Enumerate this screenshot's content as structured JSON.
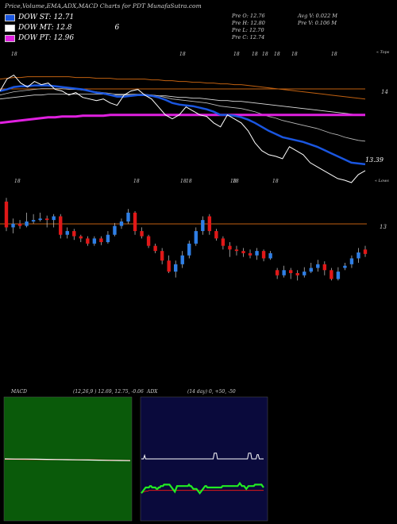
{
  "header": {
    "title": "Price,Volume,EMA,ADX,MACD Charts for PDT MunafaSutra.com",
    "dow_st_label": "DOW ST: 12.71",
    "dow_mt_label": "DOW MT: 12.8",
    "dow_mt_extra": "6",
    "dow_pt_label": "DOW PT: 12.96"
  },
  "ohlc": {
    "open": "Pre  O: 12.76",
    "high": "Pre  H: 12.80",
    "low": "Pre  L: 12.70",
    "close": "Pre  C: 12.74",
    "avg_vol": "Avg V: 0.022  M",
    "pre_vol": "Pre  V: 0.106  M"
  },
  "colors": {
    "up": "#2f7fe6",
    "down": "#e01818",
    "ema_fast": "#1a56e0",
    "ema_purple": "#e020e0",
    "macd_bg": "#0a5a0a",
    "adx_bg": "#0a0a3c",
    "orange_line": "#c06010",
    "green_line": "#22ee22"
  },
  "chart_data": [
    {
      "type": "line",
      "name": "ema_panel",
      "top_labels": [
        "18",
        "18",
        "18",
        "18",
        "18",
        "18",
        "18",
        "18"
      ],
      "top_right_label": "« Tops",
      "y_level_label": "14",
      "last_value_label": "13.39",
      "price": [
        13.6,
        13.75,
        13.8,
        13.7,
        13.65,
        13.72,
        13.68,
        13.7,
        13.62,
        13.6,
        13.55,
        13.58,
        13.52,
        13.5,
        13.48,
        13.5,
        13.45,
        13.42,
        13.55,
        13.6,
        13.62,
        13.55,
        13.5,
        13.4,
        13.3,
        13.25,
        13.3,
        13.4,
        13.35,
        13.3,
        13.28,
        13.2,
        13.15,
        13.3,
        13.25,
        13.2,
        13.1,
        12.95,
        12.85,
        12.8,
        12.78,
        12.75,
        12.9,
        12.85,
        12.8,
        12.7,
        12.65,
        12.6,
        12.55,
        12.5,
        12.48,
        12.45,
        12.55,
        12.6
      ],
      "ema_fast": [
        13.6,
        13.62,
        13.65,
        13.66,
        13.66,
        13.67,
        13.67,
        13.67,
        13.66,
        13.65,
        13.64,
        13.63,
        13.62,
        13.6,
        13.58,
        13.57,
        13.55,
        13.53,
        13.53,
        13.54,
        13.55,
        13.55,
        13.54,
        13.52,
        13.49,
        13.45,
        13.43,
        13.42,
        13.41,
        13.39,
        13.37,
        13.34,
        13.3,
        13.3,
        13.29,
        13.27,
        13.24,
        13.2,
        13.15,
        13.1,
        13.06,
        13.02,
        13.0,
        12.98,
        12.96,
        12.93,
        12.9,
        12.86,
        12.82,
        12.78,
        12.74,
        12.7,
        12.69,
        12.68
      ],
      "ema_mid": [
        13.55,
        13.57,
        13.59,
        13.6,
        13.61,
        13.62,
        13.63,
        13.63,
        13.63,
        13.63,
        13.62,
        13.62,
        13.61,
        13.6,
        13.59,
        13.58,
        13.57,
        13.56,
        13.56,
        13.56,
        13.56,
        13.56,
        13.55,
        13.54,
        13.52,
        13.5,
        13.49,
        13.48,
        13.47,
        13.46,
        13.45,
        13.43,
        13.41,
        13.4,
        13.39,
        13.38,
        13.36,
        13.34,
        13.31,
        13.28,
        13.26,
        13.23,
        13.21,
        13.19,
        13.17,
        13.15,
        13.13,
        13.1,
        13.07,
        13.05,
        13.02,
        13.0,
        12.98,
        12.97
      ],
      "ema_slow": [
        13.5,
        13.51,
        13.52,
        13.53,
        13.54,
        13.55,
        13.55,
        13.56,
        13.56,
        13.56,
        13.56,
        13.56,
        13.56,
        13.56,
        13.56,
        13.56,
        13.55,
        13.55,
        13.55,
        13.55,
        13.55,
        13.55,
        13.55,
        13.54,
        13.54,
        13.53,
        13.52,
        13.52,
        13.51,
        13.51,
        13.5,
        13.49,
        13.48,
        13.48,
        13.47,
        13.47,
        13.46,
        13.45,
        13.44,
        13.43,
        13.42,
        13.41,
        13.4,
        13.39,
        13.38,
        13.37,
        13.36,
        13.35,
        13.34,
        13.33,
        13.32,
        13.31,
        13.3,
        13.3
      ],
      "ema_orange": [
        13.75,
        13.76,
        13.77,
        13.77,
        13.78,
        13.78,
        13.78,
        13.78,
        13.78,
        13.78,
        13.78,
        13.77,
        13.77,
        13.77,
        13.76,
        13.76,
        13.76,
        13.75,
        13.75,
        13.75,
        13.75,
        13.75,
        13.74,
        13.74,
        13.73,
        13.73,
        13.72,
        13.72,
        13.71,
        13.71,
        13.7,
        13.7,
        13.69,
        13.69,
        13.68,
        13.68,
        13.67,
        13.66,
        13.65,
        13.64,
        13.63,
        13.62,
        13.61,
        13.6,
        13.59,
        13.58,
        13.57,
        13.56,
        13.55,
        13.54,
        13.53,
        13.52,
        13.51,
        13.5
      ],
      "ema_purple": [
        13.2,
        13.21,
        13.22,
        13.23,
        13.24,
        13.25,
        13.26,
        13.27,
        13.27,
        13.28,
        13.28,
        13.28,
        13.29,
        13.29,
        13.29,
        13.29,
        13.3,
        13.3,
        13.3,
        13.3,
        13.3,
        13.3,
        13.3,
        13.3,
        13.3,
        13.3,
        13.3,
        13.3,
        13.3,
        13.3,
        13.3,
        13.3,
        13.3,
        13.3,
        13.3,
        13.3,
        13.3,
        13.3,
        13.3,
        13.3,
        13.3,
        13.3,
        13.3,
        13.3,
        13.3,
        13.3,
        13.3,
        13.3,
        13.3,
        13.3,
        13.3,
        13.3,
        13.3,
        13.3
      ],
      "ylim": [
        12.3,
        14.1
      ]
    },
    {
      "type": "bar",
      "name": "candles",
      "top_labels": [
        "18",
        "18",
        "18",
        "18",
        "18",
        "18",
        "18"
      ],
      "top_right_label": "« Lows",
      "y_level_label": "13",
      "candles": [
        {
          "o": 13.45,
          "c": 13.1,
          "h": 13.5,
          "l": 13.05
        },
        {
          "o": 13.1,
          "c": 13.15,
          "h": 13.22,
          "l": 13.02
        },
        {
          "o": 13.15,
          "c": 13.12,
          "h": 13.2,
          "l": 13.08
        },
        {
          "o": 13.12,
          "c": 13.18,
          "h": 13.3,
          "l": 13.1
        },
        {
          "o": 13.18,
          "c": 13.2,
          "h": 13.28,
          "l": 13.15
        },
        {
          "o": 13.2,
          "c": 13.22,
          "h": 13.3,
          "l": 13.18
        },
        {
          "o": 13.22,
          "c": 13.2,
          "h": 13.26,
          "l": 13.1
        },
        {
          "o": 13.2,
          "c": 13.25,
          "h": 13.28,
          "l": 13.1
        },
        {
          "o": 13.25,
          "c": 13.0,
          "h": 13.28,
          "l": 12.95
        },
        {
          "o": 13.0,
          "c": 13.05,
          "h": 13.1,
          "l": 12.95
        },
        {
          "o": 13.05,
          "c": 12.98,
          "h": 13.08,
          "l": 12.93
        },
        {
          "o": 12.98,
          "c": 12.95,
          "h": 13.0,
          "l": 12.9
        },
        {
          "o": 12.95,
          "c": 12.88,
          "h": 12.98,
          "l": 12.85
        },
        {
          "o": 12.88,
          "c": 12.95,
          "h": 12.98,
          "l": 12.85
        },
        {
          "o": 12.95,
          "c": 12.9,
          "h": 12.98,
          "l": 12.86
        },
        {
          "o": 12.9,
          "c": 13.0,
          "h": 13.05,
          "l": 12.88
        },
        {
          "o": 13.0,
          "c": 13.12,
          "h": 13.16,
          "l": 12.98
        },
        {
          "o": 13.12,
          "c": 13.18,
          "h": 13.22,
          "l": 13.08
        },
        {
          "o": 13.18,
          "c": 13.3,
          "h": 13.35,
          "l": 13.15
        },
        {
          "o": 13.3,
          "c": 13.05,
          "h": 13.32,
          "l": 13.0
        },
        {
          "o": 13.05,
          "c": 12.98,
          "h": 13.1,
          "l": 12.95
        },
        {
          "o": 12.98,
          "c": 12.85,
          "h": 13.0,
          "l": 12.82
        },
        {
          "o": 12.85,
          "c": 12.78,
          "h": 12.88,
          "l": 12.75
        },
        {
          "o": 12.78,
          "c": 12.65,
          "h": 12.82,
          "l": 12.6
        },
        {
          "o": 12.65,
          "c": 12.5,
          "h": 12.72,
          "l": 12.48
        },
        {
          "o": 12.5,
          "c": 12.6,
          "h": 12.65,
          "l": 12.42
        },
        {
          "o": 12.6,
          "c": 12.72,
          "h": 12.78,
          "l": 12.55
        },
        {
          "o": 12.72,
          "c": 12.88,
          "h": 12.92,
          "l": 12.68
        },
        {
          "o": 12.88,
          "c": 13.05,
          "h": 13.1,
          "l": 12.85
        },
        {
          "o": 13.05,
          "c": 13.2,
          "h": 13.25,
          "l": 13.0
        },
        {
          "o": 13.25,
          "c": 13.05,
          "h": 13.28,
          "l": 13.0
        },
        {
          "o": 13.05,
          "c": 12.95,
          "h": 13.08,
          "l": 12.92
        },
        {
          "o": 12.95,
          "c": 12.85,
          "h": 12.98,
          "l": 12.8
        },
        {
          "o": 12.85,
          "c": 12.8,
          "h": 12.9,
          "l": 12.7
        },
        {
          "o": 12.8,
          "c": 12.78,
          "h": 12.85,
          "l": 12.72
        },
        {
          "o": 12.78,
          "c": 12.75,
          "h": 12.82,
          "l": 12.7
        },
        {
          "o": 12.75,
          "c": 12.72,
          "h": 12.8,
          "l": 12.68
        },
        {
          "o": 12.72,
          "c": 12.78,
          "h": 12.82,
          "l": 12.66
        },
        {
          "o": 12.78,
          "c": 12.68,
          "h": 12.8,
          "l": 12.64
        },
        {
          "o": 12.68,
          "c": 12.75,
          "h": 12.78,
          "l": 12.66
        },
        {
          "o": 12.52,
          "c": 12.45,
          "h": 12.55,
          "l": 12.4
        },
        {
          "o": 12.45,
          "c": 12.52,
          "h": 12.58,
          "l": 12.42
        },
        {
          "o": 12.52,
          "c": 12.48,
          "h": 12.55,
          "l": 12.4
        },
        {
          "o": 12.48,
          "c": 12.45,
          "h": 12.52,
          "l": 12.38
        },
        {
          "o": 12.45,
          "c": 12.5,
          "h": 12.56,
          "l": 12.42
        },
        {
          "o": 12.5,
          "c": 12.55,
          "h": 12.62,
          "l": 12.48
        },
        {
          "o": 12.55,
          "c": 12.6,
          "h": 12.66,
          "l": 12.5
        },
        {
          "o": 12.6,
          "c": 12.52,
          "h": 12.64,
          "l": 12.45
        },
        {
          "o": 12.52,
          "c": 12.4,
          "h": 12.55,
          "l": 12.38
        },
        {
          "o": 12.4,
          "c": 12.5,
          "h": 12.56,
          "l": 12.38
        },
        {
          "o": 12.55,
          "c": 12.58,
          "h": 12.62,
          "l": 12.52
        },
        {
          "o": 12.6,
          "c": 12.68,
          "h": 12.72,
          "l": 12.55
        },
        {
          "o": 12.68,
          "c": 12.76,
          "h": 12.82,
          "l": 12.62
        },
        {
          "o": 12.8,
          "c": 12.74,
          "h": 12.85,
          "l": 12.7
        }
      ],
      "ylim": [
        12.2,
        13.6
      ]
    },
    {
      "type": "line",
      "name": "macd_panel",
      "label": "MACD",
      "params": "(12,26,9 ) 12.69,  12.75,  -0.06",
      "macd": [
        0.05,
        0.04,
        0.04,
        0.03,
        0.02,
        0.01,
        0.0,
        -0.01,
        -0.02,
        -0.03,
        -0.04,
        -0.05,
        -0.06
      ],
      "signal": [
        0.03,
        0.03,
        0.02,
        0.02,
        0.01,
        0.01,
        0.0,
        -0.01,
        -0.01,
        -0.02,
        -0.03,
        -0.04,
        -0.05
      ],
      "ylim": [
        -1.0,
        1.0
      ]
    },
    {
      "type": "line",
      "name": "adx_panel",
      "label": "ADX",
      "params": "(14  day) 0,  +50,  -50",
      "adx_white": [
        0,
        0,
        0,
        5,
        0,
        0,
        0,
        0,
        0,
        0,
        0,
        0,
        0,
        0,
        0,
        0,
        0,
        0,
        0,
        0,
        0,
        0,
        0,
        0,
        0,
        0,
        0,
        0,
        0,
        0,
        0,
        0,
        0,
        0,
        0,
        0,
        0,
        0,
        0,
        0,
        0,
        0,
        0,
        0,
        0,
        0,
        0,
        0,
        0,
        0,
        0,
        0,
        0,
        0,
        0,
        0,
        0,
        0,
        0,
        0,
        0,
        0,
        0,
        0,
        0,
        0,
        0,
        0,
        8,
        8,
        8,
        0,
        0,
        0,
        0,
        0,
        0,
        0,
        0,
        0,
        0,
        0,
        0,
        0,
        0,
        0,
        0,
        0,
        0,
        0,
        0,
        0,
        0,
        0,
        0,
        0,
        0,
        0,
        0,
        0,
        8,
        8,
        8,
        0,
        0,
        0,
        0,
        0,
        6,
        6,
        0,
        0,
        0,
        0,
        0
      ],
      "di_plus": [
        -48,
        -46,
        -44,
        -42,
        -40,
        -40,
        -40,
        -40,
        -38,
        -38,
        -40,
        -40,
        -40,
        -40,
        -42,
        -42,
        -40,
        -40,
        -38,
        -38,
        -38,
        -36,
        -36,
        -36,
        -36,
        -36,
        -36,
        -38,
        -40,
        -42,
        -44,
        -46,
        -42,
        -38,
        -38,
        -38,
        -38,
        -38,
        -38,
        -38,
        -38,
        -38,
        -38,
        -38,
        -36,
        -38,
        -38,
        -40,
        -42,
        -42,
        -42,
        -42,
        -44,
        -46,
        -48,
        -46,
        -44,
        -42,
        -40,
        -38,
        -38,
        -40,
        -40,
        -40,
        -40,
        -40,
        -40,
        -40,
        -40,
        -40,
        -40,
        -40,
        -40,
        -40,
        -40,
        -38,
        -38,
        -38,
        -38,
        -38,
        -38,
        -38,
        -38,
        -38,
        -38,
        -38,
        -38,
        -38,
        -38,
        -38,
        -36,
        -34,
        -36,
        -38,
        -38,
        -38,
        -40,
        -42,
        -40,
        -38,
        -38,
        -38,
        -38,
        -38,
        -38,
        -36,
        -36,
        -36,
        -36,
        -36,
        -36,
        -36,
        -38,
        -40
      ],
      "di_minus": [
        -48,
        -47,
        -46,
        -46,
        -45,
        -45,
        -45,
        -44,
        -44,
        -44,
        -44,
        -44,
        -44,
        -44,
        -44,
        -44,
        -44,
        -44,
        -44,
        -44,
        -44,
        -44,
        -44,
        -44,
        -44,
        -44,
        -44,
        -44,
        -44,
        -44,
        -44,
        -44,
        -44,
        -44,
        -44,
        -44,
        -44,
        -44,
        -44,
        -44,
        -44,
        -44,
        -44,
        -44,
        -44,
        -44,
        -44,
        -44,
        -44,
        -44,
        -44,
        -44,
        -44,
        -44,
        -44,
        -44,
        -44,
        -44,
        -44,
        -44,
        -44,
        -44,
        -44,
        -44,
        -44,
        -44,
        -44,
        -44,
        -44,
        -44,
        -44,
        -44,
        -44,
        -44,
        -44,
        -44,
        -44,
        -44,
        -44,
        -44,
        -44,
        -44,
        -44,
        -44,
        -44,
        -44,
        -44,
        -44,
        -44,
        -44,
        -44,
        -44,
        -44,
        -44,
        -44,
        -44,
        -44,
        -44,
        -44,
        -44,
        -44,
        -44,
        -44,
        -44,
        -44,
        -44,
        -44,
        -44,
        -44,
        -44,
        -44,
        -44,
        -44
      ],
      "ylim": [
        -100,
        100
      ]
    }
  ]
}
